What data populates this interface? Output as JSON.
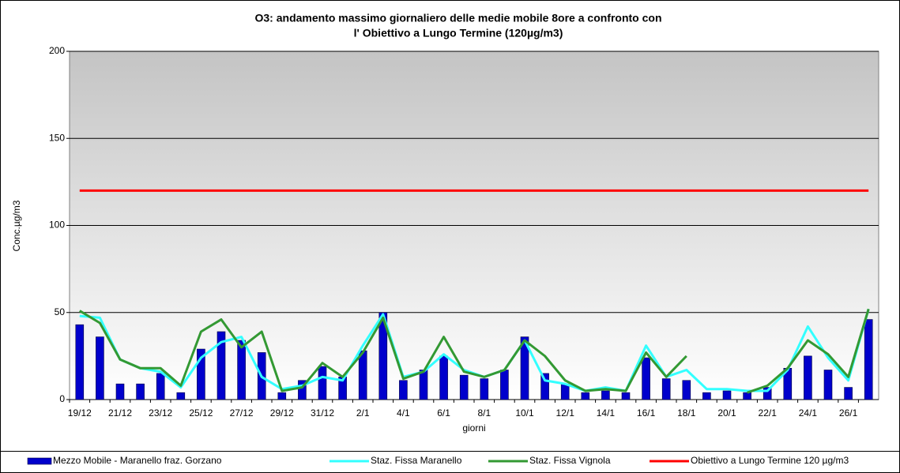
{
  "chart_data": {
    "type": "bar",
    "title": [
      "O3: andamento massimo giornaliero delle medie mobile 8ore a confronto con",
      "l' Obiettivo a Lungo Termine  (120µg/m3)"
    ],
    "x_label": "giorni",
    "y_label": "Conc.µg/m3",
    "categories": [
      "19/12",
      null,
      "21/12",
      null,
      "23/12",
      null,
      "25/12",
      null,
      "27/12",
      null,
      "29/12",
      null,
      "31/12",
      null,
      "2/1",
      null,
      "4/1",
      null,
      "6/1",
      null,
      "8/1",
      null,
      "10/1",
      null,
      "12/1",
      null,
      "14/1",
      null,
      "16/1",
      null,
      "18/1",
      null,
      "20/1",
      null,
      "22/1",
      null,
      "24/1",
      null,
      "26/1",
      null
    ],
    "series": [
      {
        "name": "Mezzo Mobile - Maranello fraz. Gorzano",
        "type": "bar",
        "color": "#0000cc",
        "values": [
          43,
          36,
          9,
          9,
          15,
          4,
          29,
          39,
          34,
          27,
          4,
          11,
          19,
          13,
          28,
          50,
          11,
          17,
          25,
          14,
          12,
          17,
          36,
          15,
          9,
          4,
          5,
          4,
          24,
          12,
          11,
          4,
          5,
          4,
          7,
          18,
          25,
          17,
          7,
          46
        ]
      },
      {
        "name": "Staz. Fissa Maranello",
        "type": "line",
        "color": "#33ffff",
        "values": [
          48,
          47,
          23,
          18,
          16,
          7,
          24,
          33,
          36,
          13,
          6,
          8,
          13,
          11,
          31,
          49,
          13,
          16,
          26,
          17,
          13,
          17,
          34,
          11,
          9,
          5,
          7,
          5,
          31,
          13,
          17,
          6,
          6,
          5,
          5,
          17,
          42,
          24,
          11,
          52
        ]
      },
      {
        "name": "Staz. Fissa Vignola",
        "type": "line",
        "color": "#339933",
        "values": [
          51,
          44,
          23,
          18,
          18,
          8,
          39,
          46,
          30,
          39,
          5,
          7,
          21,
          13,
          27,
          47,
          12,
          16,
          36,
          16,
          13,
          17,
          34,
          25,
          11,
          5,
          6,
          5,
          27,
          13,
          25,
          null,
          null,
          4,
          8,
          18,
          34,
          26,
          13,
          52
        ]
      },
      {
        "name": "Obiettivo  a Lungo Termine 120 µg/m3",
        "type": "line",
        "color": "#ff0000",
        "values": [
          120,
          120,
          120,
          120,
          120,
          120,
          120,
          120,
          120,
          120,
          120,
          120,
          120,
          120,
          120,
          120,
          120,
          120,
          120,
          120,
          120,
          120,
          120,
          120,
          120,
          120,
          120,
          120,
          120,
          120,
          120,
          120,
          120,
          120,
          120,
          120,
          120,
          120,
          120,
          120
        ]
      }
    ],
    "ylim": [
      0,
      200
    ],
    "yticks": [
      0,
      50,
      100,
      150,
      200
    ],
    "grid": true
  }
}
